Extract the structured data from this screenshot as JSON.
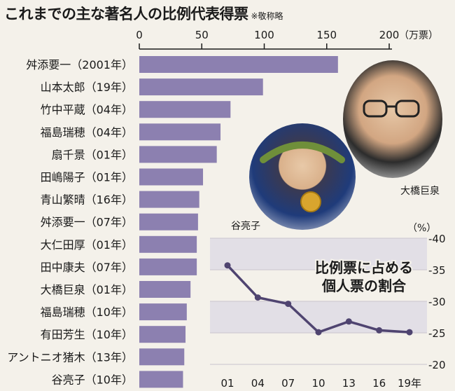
{
  "header": {
    "title": "これまでの主な著名人の比例代表得票",
    "note": "※敬称略"
  },
  "photos": {
    "left_caption": "谷亮子",
    "right_caption": "大橋巨泉"
  },
  "chart_data": [
    {
      "type": "bar",
      "orientation": "horizontal",
      "categories": [
        "舛添要一（2001年）",
        "山本太郎（19年）",
        "竹中平蔵（04年）",
        "福島瑞穂（04年）",
        "扇千景（01年）",
        "田嶋陽子（01年）",
        "青山繁晴（16年）",
        "舛添要一（07年）",
        "大仁田厚（01年）",
        "田中康夫（07年）",
        "大橋巨泉（01年）",
        "福島瑞穂（10年）",
        "有田芳生（10年）",
        "アントニオ猪木（13年）",
        "谷亮子（10年）"
      ],
      "values": [
        159,
        99,
        73,
        65,
        62,
        51,
        48,
        47,
        46,
        46,
        41,
        38,
        37,
        36,
        35
      ],
      "xlim": [
        0,
        200
      ],
      "xticks": [
        "0",
        "50",
        "100",
        "150",
        "200"
      ],
      "xunit": "（万票）",
      "bar_color": "#8c80b0"
    },
    {
      "type": "line",
      "title": "比例票に占める個人票の割合",
      "title_lines": [
        "比例票に占める",
        "個人票の割合"
      ],
      "x": [
        "01",
        "04",
        "07",
        "10",
        "13",
        "16",
        "19年"
      ],
      "values": [
        35.7,
        30.6,
        29.6,
        25.1,
        26.8,
        25.4,
        25.1
      ],
      "ylim": [
        20,
        40
      ],
      "yticks": [
        "20",
        "25",
        "30",
        "35",
        "40"
      ],
      "yunit": "（%）",
      "line_color": "#4f4470",
      "grid": true
    }
  ]
}
